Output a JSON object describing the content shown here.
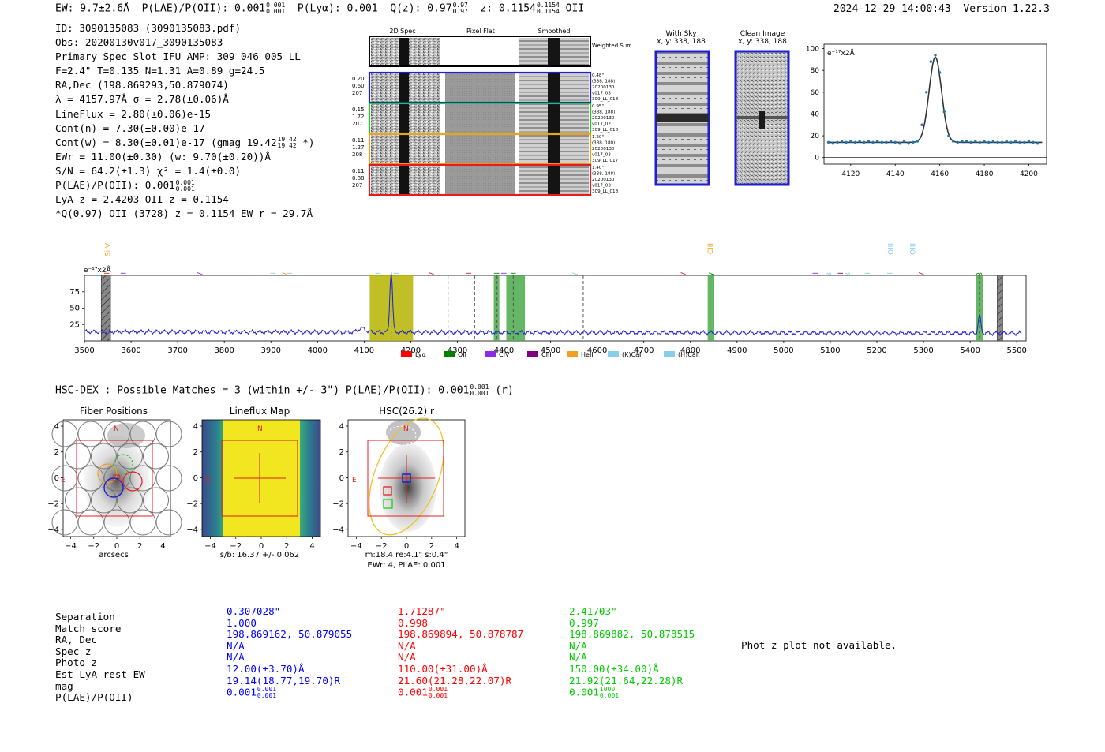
{
  "header": {
    "ew": "EW: 9.7±2.6Å",
    "plae_label": "P(LAE)/P(OII): 0.001",
    "plae_hi": "0.001",
    "plae_lo": "0.001",
    "plya": "P(Lyα): 0.001",
    "qz_label": "Q(z): 0.97",
    "qz_hi": "0.97",
    "qz_lo": "0.97",
    "z_label": "z: 0.1154",
    "z_hi": "0.1154",
    "z_lo": "0.1154",
    "z_line": "OII",
    "timestamp": "2024-12-29 14:00:43",
    "version": "Version 1.22.3"
  },
  "info": {
    "id": "ID: 3090135083 (3090135083.pdf)",
    "obs": "Obs: 20200130v017_3090135083",
    "primary": "Primary Spec_Slot_IFU_AMP: 309_046_005_LL",
    "fwhm": "F=2.4\"  T=0.135  N=1.31  A=0.89  g=24.5",
    "radec": "RA,Dec (198.869293,50.879074)",
    "lambda": "λ = 4157.97Å  σ = 2.78(±0.06)Å",
    "lineflux": "LineFlux = 2.80(±0.06)e-15",
    "contn": "Cont(n) = 7.30(±0.00)e-17",
    "contw": "Cont(w) = 8.30(±0.01)e-17 (gmag 19.42",
    "contw_hi": "19.42",
    "contw_lo": "19.42",
    "contw_end": "*)",
    "ewr": "EWr = 11.00(±0.30) (w: 9.70(±0.20))Å",
    "sn": "S/N = 64.2(±1.3)  χ² = 1.4(±0.0)",
    "plae": "P(LAE)/P(OII): 0.001",
    "plae_hi": "0.001",
    "plae_lo": "0.001",
    "lya": "LyA z = 2.4203  OII z = 0.1154",
    "q": "*Q(0.97) OII (3728) z = 0.1154  EW r = 29.7Å"
  },
  "cutouts": {
    "col_titles": [
      "2D Spec",
      "Pixel Flat",
      "Smoothed"
    ],
    "weighted": "Weighted Sum",
    "rows": [
      {
        "w": [
          "0.20",
          "0.60",
          "207"
        ],
        "meta": [
          "0.48\"",
          "(338, 188)",
          "20200130",
          "v017_03",
          "309_LL_018"
        ],
        "color": "#1f1fd0"
      },
      {
        "w": [
          "0.15",
          "1.72",
          "207"
        ],
        "meta": [
          "0.95\"",
          "(338, 188)",
          "20200130",
          "v017_02",
          "309_LL_018"
        ],
        "color": "#22cc22"
      },
      {
        "w": [
          "0.11",
          "1.27",
          "208"
        ],
        "meta": [
          "1.20\"",
          "(338, 180)",
          "20200130",
          "v017_03",
          "309_LL_017"
        ],
        "color": "#f0a020"
      },
      {
        "w": [
          "0.11",
          "0.88",
          "207"
        ],
        "meta": [
          "1.40\"",
          "(338, 188)",
          "20200130",
          "v017_03",
          "309_LL_018"
        ],
        "color": "#e02020"
      }
    ]
  },
  "sky": {
    "with_sky": "With Sky",
    "with_sky_xy": "x, y: 338, 188",
    "clean": "Clean Image",
    "clean_xy": "x, y: 338, 188"
  },
  "zoom_chart": {
    "type": "line",
    "unit": "e⁻¹⁷x2Å",
    "xlim": [
      4108,
      4208
    ],
    "ylim": [
      -6,
      104
    ],
    "xticks": [
      "4120",
      "4140",
      "4160",
      "4180",
      "4200"
    ],
    "yticks": [
      "0",
      "20",
      "40",
      "60",
      "80",
      "100"
    ],
    "center": 4158,
    "sigma": 2.78,
    "amplitude": 78,
    "continuum": 14,
    "points": [
      [
        4110,
        14
      ],
      [
        4112,
        13
      ],
      [
        4114,
        14
      ],
      [
        4116,
        15
      ],
      [
        4118,
        14
      ],
      [
        4120,
        15
      ],
      [
        4122,
        14
      ],
      [
        4124,
        15
      ],
      [
        4126,
        14
      ],
      [
        4128,
        15
      ],
      [
        4130,
        14
      ],
      [
        4132,
        15
      ],
      [
        4134,
        14
      ],
      [
        4136,
        14
      ],
      [
        4138,
        15
      ],
      [
        4140,
        14
      ],
      [
        4142,
        13
      ],
      [
        4144,
        15
      ],
      [
        4146,
        13
      ],
      [
        4148,
        14
      ],
      [
        4150,
        15
      ],
      [
        4152,
        30
      ],
      [
        4154,
        60
      ],
      [
        4156,
        88
      ],
      [
        4158,
        94
      ],
      [
        4160,
        78
      ],
      [
        4162,
        42
      ],
      [
        4164,
        20
      ],
      [
        4166,
        15
      ],
      [
        4168,
        14
      ],
      [
        4170,
        15
      ],
      [
        4172,
        15
      ],
      [
        4174,
        14
      ],
      [
        4176,
        15
      ],
      [
        4178,
        14
      ],
      [
        4180,
        15
      ],
      [
        4182,
        14
      ],
      [
        4184,
        15
      ],
      [
        4186,
        14
      ],
      [
        4188,
        14
      ],
      [
        4190,
        15
      ],
      [
        4192,
        14
      ],
      [
        4194,
        15
      ],
      [
        4196,
        14
      ],
      [
        4198,
        14
      ],
      [
        4200,
        15
      ],
      [
        4202,
        14
      ],
      [
        4204,
        13
      ]
    ]
  },
  "full_spectrum": {
    "type": "line",
    "unit": "e⁻¹⁷x2Å",
    "xlim": [
      3500,
      5520
    ],
    "ylim": [
      0,
      100
    ],
    "xticks": [
      "3500",
      "3600",
      "3700",
      "3800",
      "3900",
      "4000",
      "4100",
      "4200",
      "4300",
      "4400",
      "4500",
      "4600",
      "4700",
      "4800",
      "4900",
      "5000",
      "5100",
      "5200",
      "5300",
      "5400",
      "5500"
    ],
    "yticks": [
      "25",
      "50",
      "75"
    ],
    "continuum": 14,
    "peaks": [
      [
        4158,
        95,
        2.8
      ],
      [
        5420,
        27,
        2.8
      ],
      [
        4095,
        6,
        8
      ]
    ],
    "shaded": [
      {
        "x0": 4112,
        "x1": 4205,
        "color": "#b5b500"
      },
      {
        "x0": 4378,
        "x1": 4390,
        "color": "#4aaa4a"
      },
      {
        "x0": 4405,
        "x1": 4445,
        "color": "#4aaa4a"
      },
      {
        "x0": 4837,
        "x1": 4850,
        "color": "#4aaa4a"
      },
      {
        "x0": 5413,
        "x1": 5427,
        "color": "#4aaa4a"
      }
    ],
    "hatched": [
      [
        3536,
        3556
      ],
      [
        5458,
        5470
      ]
    ],
    "dashed": [
      4158,
      4280,
      4337,
      4385,
      4420,
      4570,
      5420
    ],
    "line_labels": [
      {
        "text": "SiIV",
        "x": 3550,
        "color": "#f0a020",
        "row": 0
      },
      {
        "text": "OVI",
        "x": 3548,
        "color": "#e02020",
        "row": 1
      },
      {
        "text": "HeII",
        "x": 3584,
        "color": "#8b2be2",
        "row": 1
      },
      {
        "text": "SiIV",
        "x": 3748,
        "color": "#8b2be2",
        "row": 1
      },
      {
        "text": "OII",
        "x": 3905,
        "color": "#87ceeb",
        "row": 1
      },
      {
        "text": "CIV",
        "x": 3930,
        "color": "#f0a020",
        "row": 1
      },
      {
        "text": "OII",
        "x": 3940,
        "color": "#87ceeb",
        "row": 1
      },
      {
        "text": "(K)CaII",
        "x": 4130,
        "color": "#87ceeb",
        "row": 1
      },
      {
        "text": "(H)CaII",
        "x": 4170,
        "color": "#87ceeb",
        "row": 1
      },
      {
        "text": "NV",
        "x": 4245,
        "color": "#e02020",
        "row": 1
      },
      {
        "text": "SiII",
        "x": 4325,
        "color": "#e02020",
        "row": 1
      },
      {
        "text": "(K)CaII",
        "x": 4385,
        "color": "#008000",
        "row": 1
      },
      {
        "text": "HeII",
        "x": 4400,
        "color": "#8b2be2",
        "row": 1
      },
      {
        "text": "(H)CaII",
        "x": 4420,
        "color": "#008000",
        "row": 1
      },
      {
        "text": "Hγ",
        "x": 4550,
        "color": "#87ceeb",
        "row": 1
      },
      {
        "text": "SiIV",
        "x": 4785,
        "color": "#e02020",
        "row": 1
      },
      {
        "text": "CIII",
        "x": 4843,
        "color": "#f0a020",
        "row": 0
      },
      {
        "text": "Hγ",
        "x": 4843,
        "color": "#008000",
        "row": 1
      },
      {
        "text": "CII",
        "x": 5068,
        "color": "#8b2be2",
        "row": 1
      },
      {
        "text": "Hβ",
        "x": 5097,
        "color": "#87ceeb",
        "row": 1
      },
      {
        "text": "CIII",
        "x": 5122,
        "color": "#800080",
        "row": 1
      },
      {
        "text": "Hβ",
        "x": 5137,
        "color": "#87ceeb",
        "row": 1
      },
      {
        "text": "OIII",
        "x": 5180,
        "color": "#87ceeb",
        "row": 1
      },
      {
        "text": "OIII",
        "x": 5230,
        "color": "#87ceeb",
        "row": 0
      },
      {
        "text": "OIII",
        "x": 5228,
        "color": "#87ceeb",
        "row": 1
      },
      {
        "text": "OIII",
        "x": 5277,
        "color": "#87ceeb",
        "row": 0
      },
      {
        "text": "CIV",
        "x": 5296,
        "color": "#e02020",
        "row": 1
      },
      {
        "text": "Hβ",
        "x": 5420,
        "color": "#008000",
        "row": 1
      }
    ],
    "legend": [
      {
        "label": "Lyα",
        "color": "#ff0000"
      },
      {
        "label": "OII",
        "color": "#008000"
      },
      {
        "label": "CIV",
        "color": "#8b2be2"
      },
      {
        "label": "CIII",
        "color": "#800080"
      },
      {
        "label": "HeII",
        "color": "#f0a020"
      },
      {
        "label": "(K)CaII",
        "color": "#87ceeb"
      },
      {
        "label": "(H)CaII",
        "color": "#87ceeb"
      }
    ]
  },
  "hsc": {
    "summary": "HSC-DEX : Possible Matches = 3 (within +/- 3\")  P(LAE)/P(OII): 0.001",
    "summary_hi": "0.001",
    "summary_lo": "0.001",
    "summary_end": "(r)",
    "panels": [
      {
        "title": "Fiber Positions",
        "caption": "arcsecs",
        "caption2": ""
      },
      {
        "title": "Lineflux Map",
        "caption": "s/b: 16.37 +/- 0.062",
        "caption2": ""
      },
      {
        "title": "HSC(26.2) r",
        "caption": "m:18.4  re:4.1\"  s:0.4\"",
        "caption2": "EWr: 4, PLAE: 0.001"
      }
    ],
    "ticks": [
      "4",
      "2",
      "0",
      "−2",
      "−4"
    ],
    "xticks": [
      "−4",
      "−2",
      "0",
      "2",
      "4"
    ],
    "north": "N",
    "east": "E"
  },
  "matches": {
    "labels": [
      "Separation",
      "Match score",
      "RA, Dec",
      "Spec z",
      "Photo z",
      "Est LyA rest-EW",
      "mag",
      "P(LAE)/P(OII)"
    ],
    "columns": [
      {
        "color": "#0000ff",
        "values": [
          "0.307028\"",
          "1.000",
          "198.869162, 50.879055",
          "N/A",
          "N/A",
          "12.00(±3.70)Å",
          "19.14(18.77,19.70)R",
          "0.001"
        ],
        "plae_hi": "0.001",
        "plae_lo": "0.001"
      },
      {
        "color": "#ff0000",
        "values": [
          "1.71287\"",
          "0.998",
          "198.869894, 50.878787",
          "N/A",
          "N/A",
          "110.00(±31.00)Å",
          "21.60(21.28,22.07)R",
          "0.001"
        ],
        "plae_hi": "0.001",
        "plae_lo": "0.001"
      },
      {
        "color": "#00cc00",
        "values": [
          "2.41703\"",
          "0.997",
          "198.869882, 50.878515",
          "N/A",
          "N/A",
          "150.00(±34.00)Å",
          "21.92(21.64,22.28)R",
          "0.001"
        ],
        "plae_hi": "1000",
        "plae_lo": "0.001"
      }
    ],
    "photz_note": "Phot z plot not available."
  }
}
